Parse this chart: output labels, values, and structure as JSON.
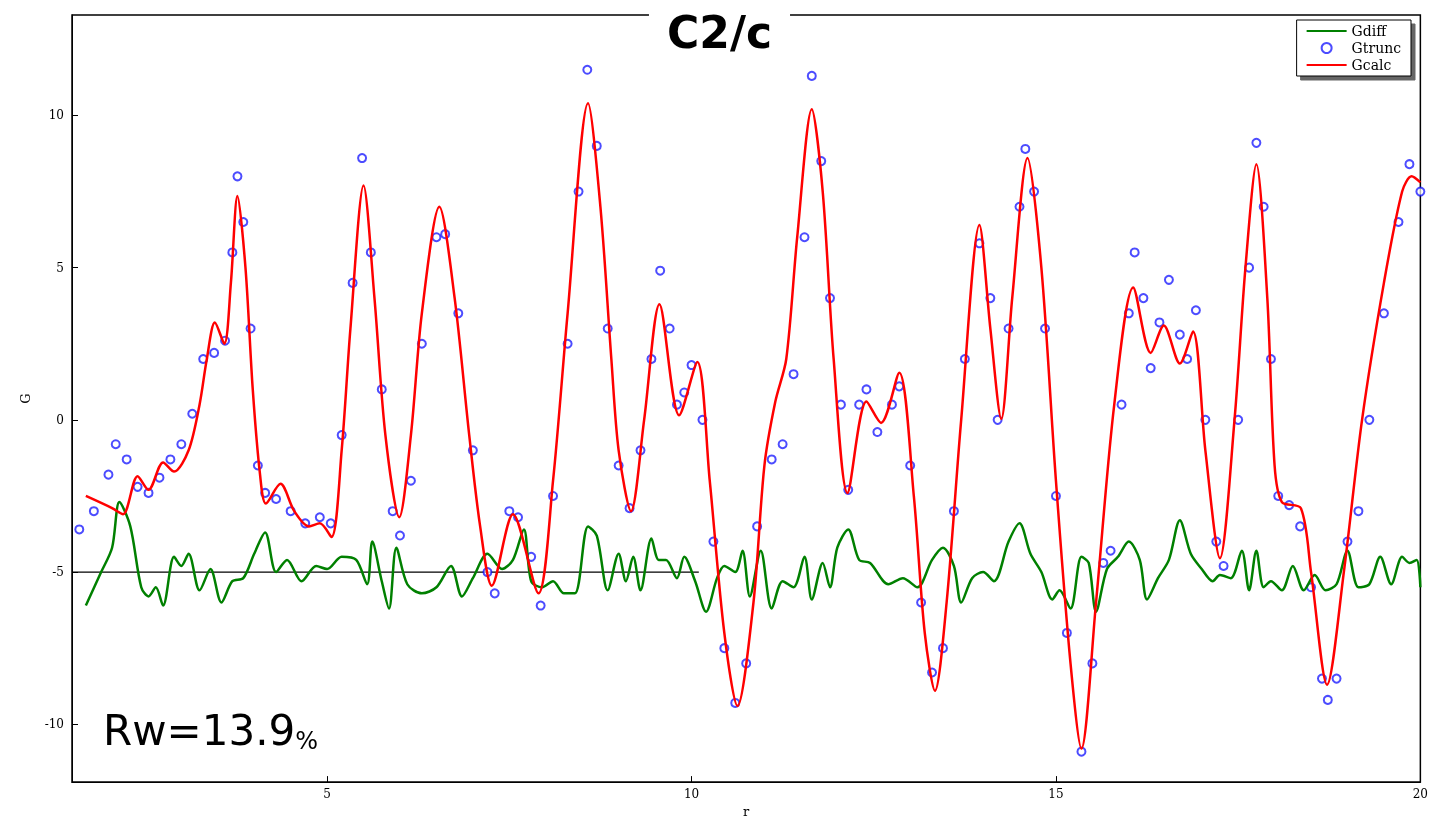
{
  "chart_data": {
    "type": "line",
    "title": "C2/c",
    "xlabel": "r",
    "ylabel": "G",
    "annotations": [
      "Rw=13.9$_{%}$"
    ],
    "xlim": [
      1.5,
      20
    ],
    "ylim": [
      -11.9,
      13.3
    ],
    "xticks": [
      5,
      10,
      15,
      20
    ],
    "yticks": [
      -10,
      -5,
      0,
      5,
      10
    ],
    "grid": false,
    "legend": "top right",
    "series": [
      {
        "name": "Gdiff",
        "marker": "none",
        "color": "#008000",
        "x": [
          1.69,
          1.9,
          2.05,
          2.15,
          2.3,
          2.45,
          2.55,
          2.65,
          2.75,
          2.9,
          3.0,
          3.1,
          3.25,
          3.4,
          3.55,
          3.7,
          3.85,
          4.0,
          4.15,
          4.3,
          4.45,
          4.65,
          4.85,
          5.0,
          5.2,
          5.4,
          5.55,
          5.62,
          5.75,
          5.85,
          5.95,
          6.1,
          6.3,
          6.5,
          6.7,
          6.85,
          7.0,
          7.2,
          7.4,
          7.55,
          7.7,
          7.8,
          7.95,
          8.1,
          8.25,
          8.4,
          8.58,
          8.7,
          8.85,
          9.0,
          9.1,
          9.2,
          9.3,
          9.45,
          9.55,
          9.65,
          9.8,
          9.9,
          10.05,
          10.2,
          10.35,
          10.45,
          10.6,
          10.7,
          10.8,
          10.95,
          11.1,
          11.25,
          11.4,
          11.55,
          11.65,
          11.8,
          11.9,
          12.0,
          12.15,
          12.3,
          12.45,
          12.7,
          12.9,
          13.1,
          13.3,
          13.45,
          13.6,
          13.7,
          13.85,
          14.0,
          14.15,
          14.35,
          14.5,
          14.65,
          14.8,
          14.95,
          15.05,
          15.2,
          15.35,
          15.45,
          15.55,
          15.7,
          15.85,
          16.0,
          16.15,
          16.25,
          16.4,
          16.55,
          16.7,
          16.85,
          17.0,
          17.15,
          17.25,
          17.4,
          17.55,
          17.65,
          17.75,
          17.85,
          17.95,
          18.1,
          18.25,
          18.4,
          18.55,
          18.7,
          18.85,
          19.0,
          19.15,
          19.3,
          19.45,
          19.6,
          19.75,
          19.85,
          19.95,
          20.0
        ],
        "values": [
          -6.1,
          -5.0,
          -4.2,
          -2.7,
          -3.5,
          -5.5,
          -5.8,
          -5.5,
          -6.1,
          -4.5,
          -4.8,
          -4.4,
          -5.6,
          -4.9,
          -6.0,
          -5.3,
          -5.2,
          -4.4,
          -3.7,
          -5.0,
          -4.6,
          -5.3,
          -4.8,
          -4.9,
          -4.5,
          -4.6,
          -5.4,
          -4.0,
          -5.3,
          -6.2,
          -4.2,
          -5.4,
          -5.7,
          -5.5,
          -4.8,
          -5.8,
          -5.2,
          -4.4,
          -4.9,
          -4.6,
          -3.6,
          -5.3,
          -5.5,
          -5.3,
          -5.7,
          -5.7,
          -3.5,
          -3.8,
          -5.6,
          -4.4,
          -5.3,
          -4.5,
          -5.6,
          -3.9,
          -4.6,
          -4.6,
          -5.2,
          -4.5,
          -5.3,
          -6.3,
          -5.2,
          -4.8,
          -5.0,
          -4.3,
          -5.8,
          -4.3,
          -6.2,
          -5.3,
          -5.5,
          -4.5,
          -5.9,
          -4.7,
          -5.5,
          -4.2,
          -3.6,
          -4.6,
          -4.7,
          -5.4,
          -5.2,
          -5.5,
          -4.6,
          -4.2,
          -4.8,
          -6.0,
          -5.2,
          -5.0,
          -5.3,
          -4.0,
          -3.4,
          -4.4,
          -5.0,
          -5.9,
          -5.6,
          -6.2,
          -4.5,
          -4.7,
          -6.3,
          -4.9,
          -4.5,
          -4.0,
          -4.6,
          -5.9,
          -5.2,
          -4.6,
          -3.3,
          -4.4,
          -4.9,
          -5.3,
          -5.1,
          -5.2,
          -4.3,
          -5.6,
          -4.3,
          -5.5,
          -5.3,
          -5.6,
          -4.8,
          -5.6,
          -5.1,
          -5.6,
          -5.4,
          -4.3,
          -5.5,
          -5.4,
          -4.5,
          -5.4,
          -4.5,
          -4.7,
          -4.6,
          -5.5
        ]
      },
      {
        "name": "Gtrunc",
        "type": "scatter",
        "marker": "circle",
        "color": "#0000ff",
        "x": [
          1.6,
          1.8,
          2.0,
          2.1,
          2.25,
          2.4,
          2.55,
          2.7,
          2.85,
          3.0,
          3.15,
          3.3,
          3.45,
          3.6,
          3.7,
          3.77,
          3.85,
          3.95,
          4.05,
          4.15,
          4.3,
          4.5,
          4.7,
          4.9,
          5.05,
          5.2,
          5.35,
          5.48,
          5.6,
          5.75,
          5.9,
          6.0,
          6.15,
          6.3,
          6.5,
          6.62,
          6.8,
          7.0,
          7.2,
          7.3,
          7.5,
          7.62,
          7.8,
          7.93,
          8.1,
          8.3,
          8.45,
          8.57,
          8.7,
          8.85,
          9.0,
          9.15,
          9.3,
          9.45,
          9.57,
          9.7,
          9.8,
          9.9,
          10.0,
          10.15,
          10.3,
          10.45,
          10.6,
          10.75,
          10.9,
          11.1,
          11.25,
          11.4,
          11.55,
          11.65,
          11.78,
          11.9,
          12.05,
          12.15,
          12.3,
          12.4,
          12.55,
          12.75,
          12.85,
          13.0,
          13.15,
          13.3,
          13.45,
          13.6,
          13.75,
          13.95,
          14.1,
          14.2,
          14.35,
          14.5,
          14.58,
          14.7,
          14.85,
          15.0,
          15.15,
          15.35,
          15.5,
          15.65,
          15.75,
          15.9,
          16.0,
          16.08,
          16.2,
          16.3,
          16.42,
          16.55,
          16.7,
          16.8,
          16.92,
          17.05,
          17.2,
          17.3,
          17.5,
          17.65,
          17.75,
          17.85,
          17.95,
          18.05,
          18.2,
          18.35,
          18.5,
          18.65,
          18.73,
          18.85,
          19.0,
          19.15,
          19.3,
          19.5,
          19.7,
          19.85,
          20.0
        ],
        "values": [
          -3.6,
          -3.0,
          -1.8,
          -0.8,
          -1.3,
          -2.2,
          -2.4,
          -1.9,
          -1.3,
          -0.8,
          0.2,
          2.0,
          2.2,
          2.6,
          5.5,
          8.0,
          6.5,
          3.0,
          -1.5,
          -2.4,
          -2.6,
          -3.0,
          -3.4,
          -3.2,
          -3.4,
          -0.5,
          4.5,
          8.6,
          5.5,
          1.0,
          -3.0,
          -3.8,
          -2.0,
          2.5,
          6.0,
          6.1,
          3.5,
          -1.0,
          -5.0,
          -5.7,
          -3.0,
          -3.2,
          -4.5,
          -6.1,
          -2.5,
          2.5,
          7.5,
          11.5,
          9.0,
          3.0,
          -1.5,
          -2.9,
          -1.0,
          2.0,
          4.9,
          3.0,
          0.5,
          0.9,
          1.8,
          0.0,
          -4.0,
          -7.5,
          -9.3,
          -8.0,
          -3.5,
          -1.3,
          -0.8,
          1.5,
          6.0,
          11.3,
          8.5,
          4.0,
          0.5,
          -2.3,
          0.5,
          1.0,
          -0.4,
          0.5,
          1.1,
          -1.5,
          -6.0,
          -8.3,
          -7.5,
          -3.0,
          2.0,
          5.8,
          4.0,
          0.0,
          3.0,
          7.0,
          8.9,
          7.5,
          3.0,
          -2.5,
          -7.0,
          -10.9,
          -8.0,
          -4.7,
          -4.3,
          0.5,
          3.5,
          5.5,
          4.0,
          1.7,
          3.2,
          4.6,
          2.8,
          2.0,
          3.6,
          0.0,
          -4.0,
          -4.8,
          0.0,
          5.0,
          9.1,
          7.0,
          2.0,
          -2.5,
          -2.8,
          -3.5,
          -5.5,
          -8.5,
          -9.2,
          -8.5,
          -4.0,
          -3.0,
          0.0,
          3.5,
          6.5,
          8.4,
          7.5
        ]
      },
      {
        "name": "Gcalc",
        "marker": "none",
        "color": "#ff0000",
        "x": [
          1.69,
          2.05,
          2.2,
          2.4,
          2.55,
          2.75,
          2.9,
          3.1,
          3.25,
          3.35,
          3.46,
          3.59,
          3.68,
          3.77,
          3.88,
          3.98,
          4.08,
          4.16,
          4.36,
          4.55,
          4.75,
          4.9,
          5.06,
          5.2,
          5.32,
          5.5,
          5.65,
          5.8,
          5.99,
          6.15,
          6.3,
          6.54,
          6.75,
          6.95,
          7.1,
          7.26,
          7.55,
          7.9,
          8.1,
          8.3,
          8.58,
          8.75,
          8.9,
          9.0,
          9.17,
          9.35,
          9.56,
          9.83,
          10.08,
          10.25,
          10.45,
          10.63,
          10.85,
          11.0,
          11.15,
          11.3,
          11.45,
          11.65,
          11.8,
          11.95,
          12.14,
          12.4,
          12.6,
          12.85,
          13.05,
          13.2,
          13.34,
          13.5,
          13.7,
          13.95,
          14.1,
          14.25,
          14.4,
          14.61,
          14.8,
          15.0,
          15.2,
          15.35,
          15.55,
          15.8,
          16.06,
          16.3,
          16.48,
          16.7,
          16.88,
          17.05,
          17.25,
          17.45,
          17.6,
          17.75,
          17.9,
          18.0,
          18.1,
          18.36,
          18.5,
          18.72,
          18.95,
          19.2,
          19.5,
          19.75,
          19.88,
          20.0
        ],
        "values": [
          -2.5,
          -2.9,
          -3.1,
          -1.85,
          -2.3,
          -1.4,
          -1.7,
          -1.0,
          0.5,
          2.0,
          3.2,
          2.5,
          4.5,
          7.35,
          5.0,
          1.0,
          -1.8,
          -2.75,
          -2.1,
          -3.0,
          -3.5,
          -3.4,
          -3.85,
          -1.0,
          3.0,
          7.7,
          4.0,
          -0.5,
          -3.2,
          -0.5,
          3.5,
          7.0,
          4.0,
          -0.5,
          -3.5,
          -5.45,
          -3.1,
          -5.7,
          -2.0,
          3.5,
          10.4,
          7.0,
          2.0,
          -1.0,
          -3.0,
          0.0,
          3.8,
          0.15,
          1.9,
          -2.0,
          -7.0,
          -9.4,
          -6.0,
          -1.5,
          0.6,
          2.0,
          6.0,
          10.2,
          7.5,
          2.0,
          -2.4,
          0.6,
          -0.1,
          1.55,
          -2.5,
          -7.0,
          -8.9,
          -6.0,
          0.0,
          6.4,
          3.0,
          0.03,
          4.0,
          8.6,
          5.0,
          -2.0,
          -8.0,
          -10.8,
          -6.0,
          0.5,
          4.35,
          2.2,
          3.1,
          1.85,
          2.9,
          -1.0,
          -4.55,
          0.0,
          5.0,
          8.4,
          4.0,
          -1.5,
          -2.7,
          -2.9,
          -5.0,
          -8.7,
          -5.0,
          0.0,
          4.5,
          7.5,
          8.0,
          7.8
        ]
      },
      {
        "marker": "none",
        "color": "#000000",
        "x": [
          1.5,
          10.1
        ],
        "values": [
          -5,
          -5
        ]
      }
    ]
  }
}
